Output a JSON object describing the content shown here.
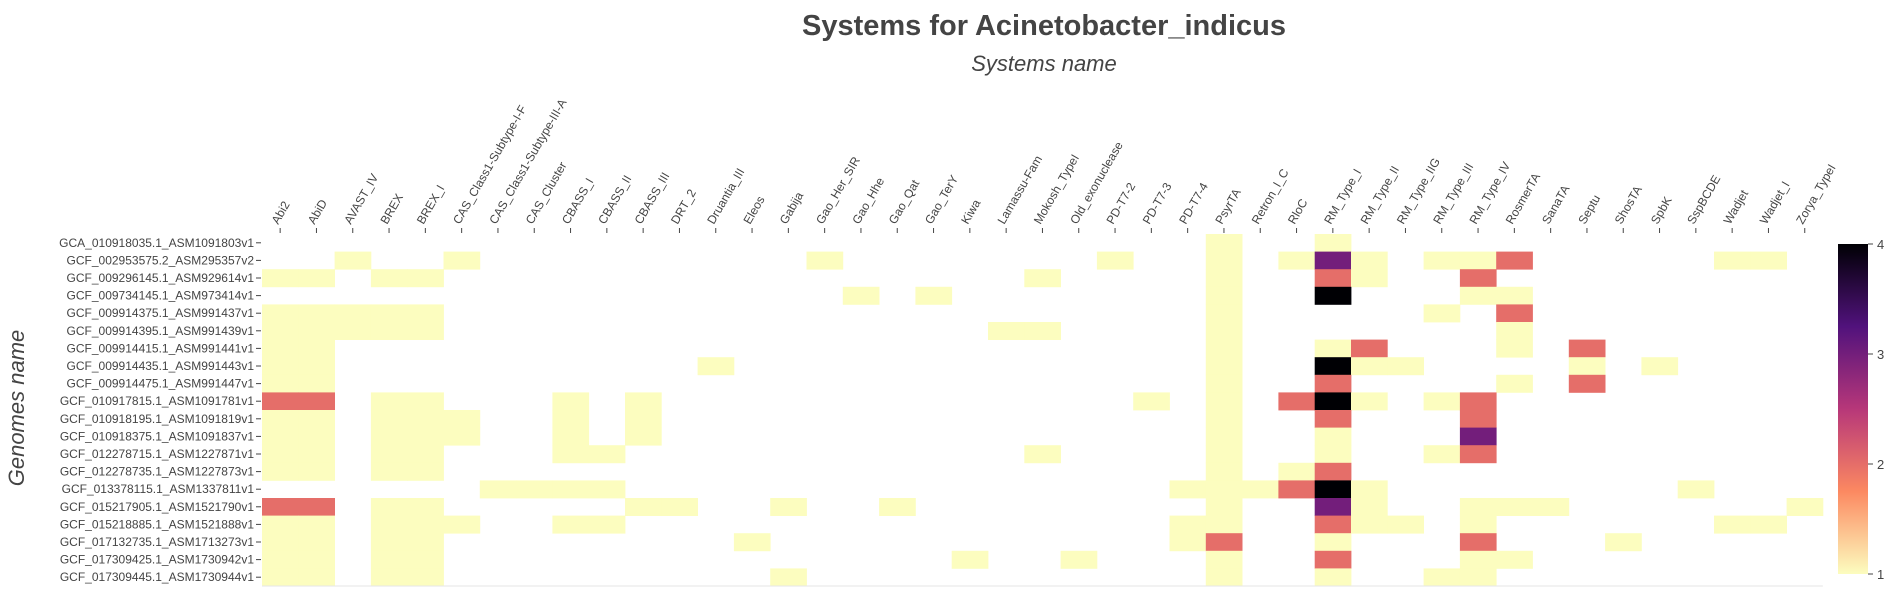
{
  "chart_data": {
    "type": "heatmap",
    "title": "Systems for Acinetobacter_indicus",
    "xlabel": "Systems name",
    "ylabel": "Genomes name",
    "colorscale": [
      "#fcfdbf",
      "#fc8961",
      "#b73779",
      "#51127c",
      "#000004"
    ],
    "zrange": [
      1,
      4
    ],
    "colorbar_ticks": [
      1,
      2,
      3,
      4
    ],
    "x": [
      "Abi2",
      "AbiD",
      "AVAST_IV",
      "BREX",
      "BREX_I",
      "CAS_Class1-Subtype-I-F",
      "CAS_Class1-Subtype-III-A",
      "CAS_Cluster",
      "CBASS_I",
      "CBASS_II",
      "CBASS_III",
      "DRT_2",
      "Druantia_III",
      "Eleos",
      "Gabija",
      "Gao_Her_SIR",
      "Gao_Hhe",
      "Gao_Qat",
      "Gao_TerY",
      "Kiwa",
      "Lamassu-Fam",
      "Mokosh_TypeI",
      "Old_exonuclease",
      "PD-T7-2",
      "PD-T7-3",
      "PD-T7-4",
      "PsyrTA",
      "Retron_I_C",
      "RloC",
      "RM_Type_I",
      "RM_Type_II",
      "RM_Type_IIG",
      "RM_Type_III",
      "RM_Type_IV",
      "RosmerTA",
      "SanaTA",
      "Septu",
      "ShosTA",
      "SpbK",
      "SspBCDE",
      "Wadjet",
      "Wadjet_I",
      "Zorya_TypeI"
    ],
    "y": [
      "GCA_010918035.1_ASM1091803v1",
      "GCF_002953575.2_ASM295357v2",
      "GCF_009296145.1_ASM929614v1",
      "GCF_009734145.1_ASM973414v1",
      "GCF_009914375.1_ASM991437v1",
      "GCF_009914395.1_ASM991439v1",
      "GCF_009914415.1_ASM991441v1",
      "GCF_009914435.1_ASM991443v1",
      "GCF_009914475.1_ASM991447v1",
      "GCF_010917815.1_ASM1091781v1",
      "GCF_010918195.1_ASM1091819v1",
      "GCF_010918375.1_ASM1091837v1",
      "GCF_012278715.1_ASM1227871v1",
      "GCF_012278735.1_ASM1227873v1",
      "GCF_013378115.1_ASM1337811v1",
      "GCF_015217905.1_ASM1521790v1",
      "GCF_015218885.1_ASM1521888v1",
      "GCF_017132735.1_ASM1713273v1",
      "GCF_017309425.1_ASM1730942v1",
      "GCF_017309445.1_ASM1730944v1"
    ],
    "z": [
      [
        0,
        0,
        0,
        0,
        0,
        0,
        0,
        0,
        0,
        0,
        0,
        0,
        0,
        0,
        0,
        0,
        0,
        0,
        0,
        0,
        0,
        0,
        0,
        0,
        0,
        0,
        1,
        0,
        0,
        1,
        0,
        0,
        0,
        0,
        0,
        0,
        0,
        0,
        0,
        0,
        0,
        0,
        0
      ],
      [
        0,
        0,
        1,
        0,
        0,
        1,
        0,
        0,
        0,
        0,
        0,
        0,
        0,
        0,
        0,
        1,
        0,
        0,
        0,
        0,
        0,
        0,
        0,
        1,
        0,
        0,
        1,
        0,
        1,
        3,
        1,
        0,
        1,
        1,
        2,
        0,
        0,
        0,
        0,
        0,
        1,
        1,
        0
      ],
      [
        1,
        1,
        0,
        1,
        1,
        0,
        0,
        0,
        0,
        0,
        0,
        0,
        0,
        0,
        0,
        0,
        0,
        0,
        0,
        0,
        0,
        1,
        0,
        0,
        0,
        0,
        1,
        0,
        0,
        2,
        1,
        0,
        0,
        2,
        0,
        0,
        0,
        0,
        0,
        0,
        0,
        0,
        0
      ],
      [
        0,
        0,
        0,
        0,
        0,
        0,
        0,
        0,
        0,
        0,
        0,
        0,
        0,
        0,
        0,
        0,
        1,
        0,
        1,
        0,
        0,
        0,
        0,
        0,
        0,
        0,
        1,
        0,
        0,
        4,
        0,
        0,
        0,
        1,
        1,
        0,
        0,
        0,
        0,
        0,
        0,
        0,
        0
      ],
      [
        1,
        1,
        1,
        1,
        1,
        0,
        0,
        0,
        0,
        0,
        0,
        0,
        0,
        0,
        0,
        0,
        0,
        0,
        0,
        0,
        0,
        0,
        0,
        0,
        0,
        0,
        1,
        0,
        0,
        0,
        0,
        0,
        1,
        0,
        2,
        0,
        0,
        0,
        0,
        0,
        0,
        0,
        0
      ],
      [
        1,
        1,
        1,
        1,
        1,
        0,
        0,
        0,
        0,
        0,
        0,
        0,
        0,
        0,
        0,
        0,
        0,
        0,
        0,
        0,
        1,
        1,
        0,
        0,
        0,
        0,
        1,
        0,
        0,
        0,
        0,
        0,
        0,
        0,
        1,
        0,
        0,
        0,
        0,
        0,
        0,
        0,
        0
      ],
      [
        1,
        1,
        0,
        0,
        0,
        0,
        0,
        0,
        0,
        0,
        0,
        0,
        0,
        0,
        0,
        0,
        0,
        0,
        0,
        0,
        0,
        0,
        0,
        0,
        0,
        0,
        1,
        0,
        0,
        1,
        2,
        0,
        0,
        0,
        1,
        0,
        2,
        0,
        0,
        0,
        0,
        0,
        0
      ],
      [
        1,
        1,
        0,
        0,
        0,
        0,
        0,
        0,
        0,
        0,
        0,
        0,
        1,
        0,
        0,
        0,
        0,
        0,
        0,
        0,
        0,
        0,
        0,
        0,
        0,
        0,
        1,
        0,
        0,
        4,
        1,
        1,
        0,
        0,
        0,
        0,
        1,
        0,
        1,
        0,
        0,
        0,
        0
      ],
      [
        1,
        1,
        0,
        0,
        0,
        0,
        0,
        0,
        0,
        0,
        0,
        0,
        0,
        0,
        0,
        0,
        0,
        0,
        0,
        0,
        0,
        0,
        0,
        0,
        0,
        0,
        1,
        0,
        0,
        2,
        0,
        0,
        0,
        0,
        1,
        0,
        2,
        0,
        0,
        0,
        0,
        0,
        0
      ],
      [
        2,
        2,
        0,
        1,
        1,
        0,
        0,
        0,
        1,
        0,
        1,
        0,
        0,
        0,
        0,
        0,
        0,
        0,
        0,
        0,
        0,
        0,
        0,
        0,
        1,
        0,
        1,
        0,
        2,
        4,
        1,
        0,
        1,
        2,
        0,
        0,
        0,
        0,
        0,
        0,
        0,
        0,
        0
      ],
      [
        1,
        1,
        0,
        1,
        1,
        1,
        0,
        0,
        1,
        0,
        1,
        0,
        0,
        0,
        0,
        0,
        0,
        0,
        0,
        0,
        0,
        0,
        0,
        0,
        0,
        0,
        1,
        0,
        0,
        2,
        0,
        0,
        0,
        2,
        0,
        0,
        0,
        0,
        0,
        0,
        0,
        0,
        0
      ],
      [
        1,
        1,
        0,
        1,
        1,
        1,
        0,
        0,
        1,
        0,
        1,
        0,
        0,
        0,
        0,
        0,
        0,
        0,
        0,
        0,
        0,
        0,
        0,
        0,
        0,
        0,
        1,
        0,
        0,
        1,
        0,
        0,
        0,
        3,
        0,
        0,
        0,
        0,
        0,
        0,
        0,
        0,
        0
      ],
      [
        1,
        1,
        0,
        1,
        1,
        0,
        0,
        0,
        1,
        1,
        0,
        0,
        0,
        0,
        0,
        0,
        0,
        0,
        0,
        0,
        0,
        1,
        0,
        0,
        0,
        0,
        1,
        0,
        0,
        1,
        0,
        0,
        1,
        2,
        0,
        0,
        0,
        0,
        0,
        0,
        0,
        0,
        0
      ],
      [
        1,
        1,
        0,
        1,
        1,
        0,
        0,
        0,
        0,
        0,
        0,
        0,
        0,
        0,
        0,
        0,
        0,
        0,
        0,
        0,
        0,
        0,
        0,
        0,
        0,
        0,
        1,
        0,
        1,
        2,
        0,
        0,
        0,
        0,
        0,
        0,
        0,
        0,
        0,
        0,
        0,
        0,
        0
      ],
      [
        0,
        0,
        0,
        0,
        0,
        0,
        1,
        1,
        1,
        1,
        0,
        0,
        0,
        0,
        0,
        0,
        0,
        0,
        0,
        0,
        0,
        0,
        0,
        0,
        0,
        1,
        1,
        1,
        2,
        4,
        1,
        0,
        0,
        0,
        0,
        0,
        0,
        0,
        0,
        1,
        0,
        0,
        0
      ],
      [
        2,
        2,
        0,
        1,
        1,
        0,
        0,
        0,
        0,
        0,
        1,
        1,
        0,
        0,
        1,
        0,
        0,
        1,
        0,
        0,
        0,
        0,
        0,
        0,
        0,
        0,
        1,
        0,
        0,
        3,
        1,
        0,
        0,
        1,
        1,
        1,
        0,
        0,
        0,
        0,
        0,
        0,
        1
      ],
      [
        1,
        1,
        0,
        1,
        1,
        1,
        0,
        0,
        1,
        1,
        0,
        0,
        0,
        0,
        0,
        0,
        0,
        0,
        0,
        0,
        0,
        0,
        0,
        0,
        0,
        1,
        1,
        0,
        0,
        2,
        1,
        1,
        0,
        1,
        0,
        0,
        0,
        0,
        0,
        0,
        1,
        1,
        0
      ],
      [
        1,
        1,
        0,
        1,
        1,
        0,
        0,
        0,
        0,
        0,
        0,
        0,
        0,
        1,
        0,
        0,
        0,
        0,
        0,
        0,
        0,
        0,
        0,
        0,
        0,
        1,
        2,
        0,
        0,
        1,
        0,
        0,
        0,
        2,
        0,
        0,
        0,
        1,
        0,
        0,
        0,
        0,
        0
      ],
      [
        1,
        1,
        0,
        1,
        1,
        0,
        0,
        0,
        0,
        0,
        0,
        0,
        0,
        0,
        0,
        0,
        0,
        0,
        0,
        1,
        0,
        0,
        1,
        0,
        0,
        0,
        1,
        0,
        0,
        2,
        0,
        0,
        0,
        1,
        1,
        0,
        0,
        0,
        0,
        0,
        0,
        0,
        0
      ],
      [
        1,
        1,
        0,
        1,
        1,
        0,
        0,
        0,
        0,
        0,
        0,
        0,
        0,
        0,
        1,
        0,
        0,
        0,
        0,
        0,
        0,
        0,
        0,
        0,
        0,
        0,
        1,
        0,
        0,
        1,
        0,
        0,
        1,
        1,
        0,
        0,
        0,
        0,
        0,
        0,
        0,
        0,
        0
      ]
    ]
  }
}
